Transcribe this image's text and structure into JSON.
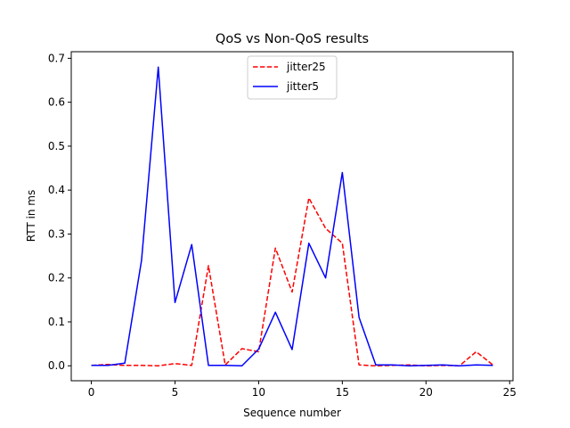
{
  "chart_data": {
    "type": "line",
    "title": "QoS vs Non-QoS results",
    "xlabel": "Sequence number",
    "ylabel": "RTT in ms",
    "xlim": [
      -1.2,
      25.2
    ],
    "ylim": [
      -0.034,
      0.715
    ],
    "xticks": [
      0,
      5,
      10,
      15,
      20,
      25
    ],
    "yticks": [
      0.0,
      0.1,
      0.2,
      0.3,
      0.4,
      0.5,
      0.6,
      0.7
    ],
    "ytick_labels": [
      "0.0",
      "0.1",
      "0.2",
      "0.3",
      "0.4",
      "0.5",
      "0.6",
      "0.7"
    ],
    "grid": false,
    "legend_position": "top-center",
    "x": [
      0,
      1,
      2,
      3,
      4,
      5,
      6,
      7,
      8,
      9,
      10,
      11,
      12,
      13,
      14,
      15,
      16,
      17,
      18,
      19,
      20,
      21,
      22,
      23,
      24
    ],
    "series": [
      {
        "name": "jitter25",
        "color": "#ff0000",
        "style": "dashed",
        "values": [
          0.001,
          0.003,
          0.001,
          0.001,
          0.0,
          0.005,
          0.001,
          0.228,
          0.002,
          0.039,
          0.032,
          0.268,
          0.168,
          0.382,
          0.313,
          0.279,
          0.002,
          0.0,
          0.001,
          0.002,
          0.0,
          0.001,
          0.0,
          0.032,
          0.002
        ]
      },
      {
        "name": "jitter5",
        "color": "#0000ff",
        "style": "solid",
        "values": [
          0.001,
          0.001,
          0.006,
          0.24,
          0.68,
          0.144,
          0.276,
          0.001,
          0.001,
          0.0,
          0.038,
          0.122,
          0.037,
          0.279,
          0.2,
          0.44,
          0.11,
          0.002,
          0.002,
          0.0,
          0.001,
          0.002,
          0.0,
          0.002,
          0.001
        ]
      }
    ]
  }
}
